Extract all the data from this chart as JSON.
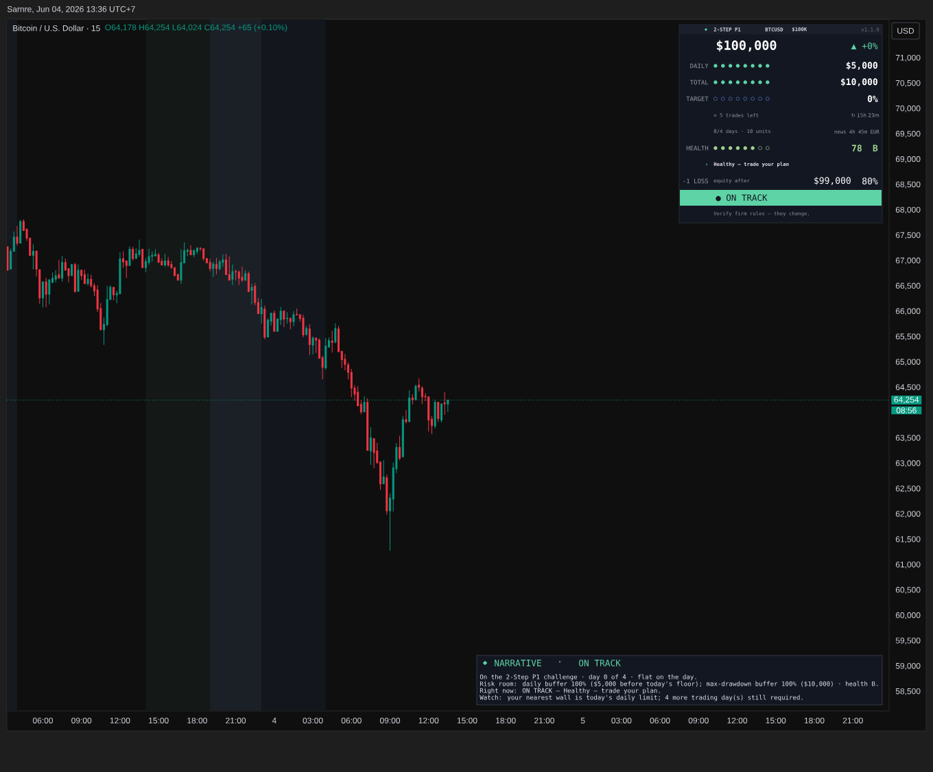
{
  "chart_data": {
    "type": "candlestick",
    "title": "Bitcoin / U.S. Dollar · 15",
    "subtitle": "O64,178 H64,254 L64,024 C64,254 +65 (+0.10%)",
    "x": [
      "2026-06-03T03:15",
      "2026-06-03T03:30",
      "2026-06-03T03:45",
      "2026-06-03T04:00",
      "2026-06-03T04:15",
      "2026-06-03T04:30",
      "2026-06-03T04:45",
      "2026-06-03T05:00",
      "2026-06-03T05:15",
      "2026-06-03T05:30",
      "2026-06-03T05:45",
      "2026-06-03T06:00",
      "2026-06-03T06:15",
      "2026-06-03T06:30",
      "2026-06-03T06:45",
      "2026-06-03T07:00",
      "2026-06-03T07:15",
      "2026-06-03T07:30",
      "2026-06-03T07:45",
      "2026-06-03T08:00",
      "2026-06-03T08:15",
      "2026-06-03T08:30",
      "2026-06-03T08:45",
      "2026-06-03T09:00",
      "2026-06-03T09:15",
      "2026-06-03T09:30",
      "2026-06-03T09:45",
      "2026-06-03T10:00",
      "2026-06-03T10:15",
      "2026-06-03T10:30",
      "2026-06-03T10:45",
      "2026-06-03T11:00",
      "2026-06-03T11:15",
      "2026-06-03T11:30",
      "2026-06-03T11:45",
      "2026-06-03T12:00",
      "2026-06-03T12:15",
      "2026-06-03T12:30",
      "2026-06-03T12:45",
      "2026-06-03T13:00",
      "2026-06-03T13:15",
      "2026-06-03T13:30",
      "2026-06-03T13:45",
      "2026-06-03T14:00",
      "2026-06-03T14:15",
      "2026-06-03T14:30",
      "2026-06-03T14:45",
      "2026-06-03T15:00",
      "2026-06-03T15:15",
      "2026-06-03T15:30",
      "2026-06-03T15:45",
      "2026-06-03T16:00",
      "2026-06-03T16:15",
      "2026-06-03T16:30",
      "2026-06-03T16:45",
      "2026-06-03T17:00",
      "2026-06-03T17:15",
      "2026-06-03T17:30",
      "2026-06-03T17:45",
      "2026-06-03T18:00",
      "2026-06-03T18:15",
      "2026-06-03T18:30",
      "2026-06-03T18:45",
      "2026-06-03T19:00",
      "2026-06-03T19:15",
      "2026-06-03T19:30",
      "2026-06-03T19:45",
      "2026-06-03T20:00",
      "2026-06-03T20:15",
      "2026-06-03T20:30",
      "2026-06-03T20:45",
      "2026-06-03T21:00",
      "2026-06-03T21:15",
      "2026-06-03T21:30",
      "2026-06-03T21:45",
      "2026-06-03T22:00",
      "2026-06-03T22:15",
      "2026-06-03T22:30",
      "2026-06-03T22:45",
      "2026-06-03T23:00",
      "2026-06-03T23:15",
      "2026-06-03T23:30",
      "2026-06-03T23:45",
      "2026-06-04T00:00",
      "2026-06-04T00:15",
      "2026-06-04T00:30",
      "2026-06-04T00:45",
      "2026-06-04T01:00",
      "2026-06-04T01:15",
      "2026-06-04T01:30",
      "2026-06-04T01:45",
      "2026-06-04T02:00",
      "2026-06-04T02:15",
      "2026-06-04T02:30",
      "2026-06-04T02:45",
      "2026-06-04T03:00",
      "2026-06-04T03:15",
      "2026-06-04T03:30",
      "2026-06-04T03:45",
      "2026-06-04T04:00",
      "2026-06-04T04:15",
      "2026-06-04T04:30",
      "2026-06-04T04:45",
      "2026-06-04T05:00",
      "2026-06-04T05:15",
      "2026-06-04T05:30",
      "2026-06-04T05:45",
      "2026-06-04T06:00",
      "2026-06-04T06:15",
      "2026-06-04T06:30",
      "2026-06-04T06:45",
      "2026-06-04T07:00",
      "2026-06-04T07:15",
      "2026-06-04T07:30",
      "2026-06-04T07:45",
      "2026-06-04T08:00",
      "2026-06-04T08:15",
      "2026-06-04T08:30",
      "2026-06-04T08:45",
      "2026-06-04T09:00",
      "2026-06-04T09:15",
      "2026-06-04T09:30",
      "2026-06-04T09:45",
      "2026-06-04T10:00",
      "2026-06-04T10:15",
      "2026-06-04T10:30",
      "2026-06-04T10:45",
      "2026-06-04T11:00",
      "2026-06-04T11:15",
      "2026-06-04T11:30",
      "2026-06-04T11:45",
      "2026-06-04T12:00",
      "2026-06-04T12:15",
      "2026-06-04T12:30",
      "2026-06-04T12:45",
      "2026-06-04T13:00",
      "2026-06-04T13:15",
      "2026-06-04T13:30"
    ],
    "ohlc": [
      [
        67280,
        67290,
        66810,
        66820
      ],
      [
        66840,
        67240,
        66840,
        67190
      ],
      [
        67190,
        67580,
        67190,
        67470
      ],
      [
        67470,
        67690,
        67310,
        67350
      ],
      [
        67350,
        67810,
        67350,
        67780
      ],
      [
        67780,
        67820,
        67600,
        67600
      ],
      [
        67630,
        67630,
        67400,
        67450
      ],
      [
        67450,
        67450,
        67110,
        67110
      ],
      [
        67110,
        67330,
        66840,
        67190
      ],
      [
        67190,
        67210,
        66700,
        66840
      ],
      [
        66830,
        66830,
        66160,
        66270
      ],
      [
        66270,
        66590,
        66090,
        66590
      ],
      [
        66590,
        66670,
        66090,
        66340
      ],
      [
        66340,
        66630,
        66150,
        66630
      ],
      [
        66580,
        66770,
        66560,
        66660
      ],
      [
        66640,
        66820,
        66580,
        66710
      ],
      [
        66730,
        67020,
        66660,
        66660
      ],
      [
        66660,
        67100,
        66600,
        66970
      ],
      [
        66970,
        67050,
        66820,
        66820
      ],
      [
        66850,
        66850,
        66580,
        66710
      ],
      [
        66710,
        66940,
        66710,
        66930
      ],
      [
        66930,
        66960,
        66380,
        66400
      ],
      [
        66400,
        66930,
        66400,
        66820
      ],
      [
        66820,
        66830,
        66630,
        66710
      ],
      [
        66730,
        66830,
        66550,
        66550
      ],
      [
        66550,
        66750,
        66520,
        66640
      ],
      [
        66640,
        66730,
        66480,
        66510
      ],
      [
        66510,
        66560,
        66310,
        66410
      ],
      [
        66430,
        66520,
        66000,
        66050
      ],
      [
        66060,
        66170,
        65640,
        65640
      ],
      [
        65640,
        65890,
        65350,
        65750
      ],
      [
        65740,
        66510,
        65720,
        66240
      ],
      [
        66240,
        66520,
        66230,
        66480
      ],
      [
        66480,
        66480,
        66230,
        66330
      ],
      [
        66330,
        66410,
        66170,
        66360
      ],
      [
        66350,
        67170,
        66350,
        67040
      ],
      [
        67040,
        67190,
        66870,
        66980
      ],
      [
        67000,
        67000,
        66670,
        66910
      ],
      [
        66910,
        67290,
        66910,
        67230
      ],
      [
        67230,
        67280,
        67010,
        67050
      ],
      [
        67050,
        67250,
        67050,
        67140
      ],
      [
        67130,
        67420,
        67090,
        67210
      ],
      [
        67230,
        67230,
        66870,
        66870
      ],
      [
        66870,
        67060,
        66780,
        66990
      ],
      [
        66970,
        67240,
        66930,
        67090
      ],
      [
        67090,
        67190,
        66990,
        67110
      ],
      [
        67100,
        67230,
        67100,
        67130
      ],
      [
        67120,
        67160,
        66970,
        66970
      ],
      [
        66990,
        67050,
        66920,
        66920
      ],
      [
        66920,
        67140,
        66890,
        67000
      ],
      [
        67000,
        67080,
        66890,
        66920
      ],
      [
        66930,
        67000,
        66850,
        66870
      ],
      [
        66870,
        66870,
        66700,
        66710
      ],
      [
        66730,
        66750,
        66620,
        66620
      ],
      [
        66620,
        67230,
        66550,
        66970
      ],
      [
        66960,
        67370,
        66960,
        67200
      ],
      [
        67190,
        67240,
        67100,
        67210
      ],
      [
        67210,
        67310,
        67120,
        67120
      ],
      [
        67120,
        67230,
        67080,
        67200
      ],
      [
        67190,
        67270,
        67140,
        67250
      ],
      [
        67250,
        67270,
        67200,
        67240
      ],
      [
        67240,
        67240,
        67010,
        67050
      ],
      [
        67050,
        67060,
        66960,
        66960
      ],
      [
        66970,
        67040,
        66800,
        66850
      ],
      [
        66850,
        66980,
        66690,
        66940
      ],
      [
        66930,
        67060,
        66740,
        66850
      ],
      [
        66850,
        67020,
        66820,
        66980
      ],
      [
        66970,
        67130,
        66890,
        67020
      ],
      [
        67020,
        67140,
        66730,
        66730
      ],
      [
        66730,
        67090,
        66620,
        66620
      ],
      [
        66640,
        66930,
        66530,
        66790
      ],
      [
        66790,
        66830,
        66620,
        66780
      ],
      [
        66780,
        66810,
        66530,
        66660
      ],
      [
        66680,
        66890,
        66590,
        66620
      ],
      [
        66620,
        66820,
        66620,
        66750
      ],
      [
        66750,
        66790,
        66390,
        66400
      ],
      [
        66420,
        66550,
        66150,
        66480
      ],
      [
        66500,
        66560,
        66130,
        66180
      ],
      [
        66180,
        66270,
        65960,
        65960
      ],
      [
        65960,
        66250,
        65770,
        66080
      ],
      [
        66050,
        66120,
        65460,
        65500
      ],
      [
        65500,
        65870,
        65500,
        65830
      ],
      [
        65810,
        65970,
        65730,
        65970
      ],
      [
        65970,
        66020,
        65610,
        65610
      ],
      [
        65610,
        65870,
        65610,
        65850
      ],
      [
        65840,
        66090,
        65740,
        66010
      ],
      [
        66010,
        66020,
        65700,
        65850
      ],
      [
        65860,
        65990,
        65770,
        65870
      ],
      [
        65870,
        65870,
        65660,
        65800
      ],
      [
        65800,
        66010,
        65720,
        65940
      ],
      [
        65950,
        66060,
        65930,
        65940
      ],
      [
        65940,
        65950,
        65810,
        65860
      ],
      [
        65870,
        65940,
        65500,
        65540
      ],
      [
        65550,
        65720,
        65530,
        65670
      ],
      [
        65660,
        65750,
        65150,
        65350
      ],
      [
        65340,
        65510,
        65160,
        65480
      ],
      [
        65480,
        65490,
        65190,
        65440
      ],
      [
        65440,
        65470,
        65080,
        65080
      ],
      [
        65090,
        65130,
        64670,
        64900
      ],
      [
        64890,
        65480,
        64860,
        65320
      ],
      [
        65300,
        65490,
        65300,
        65430
      ],
      [
        65420,
        65620,
        65200,
        65390
      ],
      [
        65400,
        65770,
        65380,
        65670
      ],
      [
        65660,
        65720,
        65210,
        65210
      ],
      [
        65220,
        65220,
        64890,
        65050
      ],
      [
        65060,
        65160,
        64850,
        64960
      ],
      [
        64950,
        65000,
        64670,
        64800
      ],
      [
        64800,
        64870,
        64320,
        64490
      ],
      [
        64490,
        64550,
        64250,
        64370
      ],
      [
        64410,
        64530,
        64140,
        64140
      ],
      [
        64170,
        64250,
        63980,
        64020
      ],
      [
        64020,
        64330,
        64020,
        64210
      ],
      [
        64210,
        64290,
        63260,
        63260
      ],
      [
        63250,
        63720,
        62980,
        63510
      ],
      [
        63490,
        63510,
        62920,
        63220
      ],
      [
        63250,
        63410,
        63000,
        63020
      ],
      [
        63030,
        63050,
        62490,
        62600
      ],
      [
        62600,
        63070,
        62600,
        62740
      ],
      [
        62720,
        62780,
        62000,
        62070
      ],
      [
        62070,
        62410,
        61290,
        62320
      ],
      [
        62300,
        63020,
        62060,
        62920
      ],
      [
        62900,
        63410,
        62820,
        63320
      ],
      [
        63320,
        63550,
        63070,
        63110
      ],
      [
        63140,
        63940,
        63130,
        63870
      ],
      [
        63870,
        64060,
        63800,
        63830
      ],
      [
        63830,
        64450,
        63830,
        64300
      ],
      [
        64300,
        64370,
        64170,
        64260
      ],
      [
        64260,
        64560,
        64250,
        64530
      ],
      [
        64550,
        64680,
        64430,
        64510
      ],
      [
        64490,
        64530,
        64180,
        64320
      ],
      [
        64330,
        64390,
        64240,
        64320
      ],
      [
        64320,
        64320,
        63640,
        63860
      ],
      [
        63880,
        63940,
        63590,
        63750
      ],
      [
        63740,
        64260,
        63700,
        64210
      ],
      [
        64210,
        64210,
        63830,
        63890
      ],
      [
        63860,
        64180,
        63820,
        64180
      ],
      [
        64200,
        64410,
        63970,
        64180
      ],
      [
        64178,
        64254,
        64024,
        64254
      ]
    ],
    "colors": [
      "#f23645",
      "#089981",
      "#089981",
      "#f23645",
      "#089981",
      "#f23645",
      "#f23645",
      "#f23645",
      "#089981",
      "#f23645",
      "#f23645",
      "#089981",
      "#f23645",
      "#089981",
      "#089981",
      "#089981",
      "#f23645",
      "#089981",
      "#f23645",
      "#f23645",
      "#089981",
      "#f23645",
      "#089981",
      "#f23645",
      "#f23645",
      "#089981",
      "#f23645",
      "#f23645",
      "#f23645",
      "#f23645",
      "#089981",
      "#089981",
      "#089981",
      "#f23645",
      "#089981",
      "#089981",
      "#f23645",
      "#f23645",
      "#089981",
      "#f23645",
      "#089981",
      "#089981",
      "#f23645",
      "#089981",
      "#089981",
      "#089981",
      "#089981",
      "#f23645",
      "#f23645",
      "#089981",
      "#f23645",
      "#f23645",
      "#f23645",
      "#f23645",
      "#089981",
      "#089981",
      "#089981",
      "#f23645",
      "#089981",
      "#089981",
      "#f23645",
      "#f23645",
      "#f23645",
      "#f23645",
      "#089981",
      "#f23645",
      "#089981",
      "#089981",
      "#f23645",
      "#f23645",
      "#089981",
      "#f23645",
      "#f23645",
      "#f23645",
      "#089981",
      "#f23645",
      "#089981",
      "#f23645",
      "#f23645",
      "#089981",
      "#f23645",
      "#089981",
      "#089981",
      "#f23645",
      "#089981",
      "#089981",
      "#f23645",
      "#089981",
      "#f23645",
      "#089981",
      "#f23645",
      "#f23645",
      "#f23645",
      "#089981",
      "#f23645",
      "#089981",
      "#f23645",
      "#f23645",
      "#f23645",
      "#089981",
      "#089981",
      "#f23645",
      "#089981",
      "#f23645",
      "#f23645",
      "#f23645",
      "#f23645",
      "#f23645",
      "#f23645",
      "#f23645",
      "#f23645",
      "#089981",
      "#f23645",
      "#089981",
      "#f23645",
      "#f23645",
      "#f23645",
      "#089981",
      "#f23645",
      "#089981",
      "#089981",
      "#089981",
      "#f23645",
      "#089981",
      "#f23645",
      "#089981",
      "#f23645",
      "#089981",
      "#f23645",
      "#f23645",
      "#f23645",
      "#f23645",
      "#f23645",
      "#089981",
      "#f23645",
      "#089981",
      "#f23645",
      "#089981"
    ],
    "xlim": [
      "2026-06-03T03:12",
      "2026-06-05T23:49"
    ],
    "xticks": [
      {
        "value": "2026-06-03T06:00",
        "label": "06:00"
      },
      {
        "value": "2026-06-03T09:00",
        "label": "09:00"
      },
      {
        "value": "2026-06-03T12:00",
        "label": "12:00"
      },
      {
        "value": "2026-06-03T15:00",
        "label": "15:00"
      },
      {
        "value": "2026-06-03T18:00",
        "label": "18:00"
      },
      {
        "value": "2026-06-03T21:00",
        "label": "21:00"
      },
      {
        "value": "2026-06-04T00:00",
        "label": "4"
      },
      {
        "value": "2026-06-04T03:00",
        "label": "03:00"
      },
      {
        "value": "2026-06-04T06:00",
        "label": "06:00"
      },
      {
        "value": "2026-06-04T09:00",
        "label": "09:00"
      },
      {
        "value": "2026-06-04T12:00",
        "label": "12:00"
      },
      {
        "value": "2026-06-04T15:00",
        "label": "15:00"
      },
      {
        "value": "2026-06-04T18:00",
        "label": "18:00"
      },
      {
        "value": "2026-06-04T21:00",
        "label": "21:00"
      },
      {
        "value": "2026-06-05T00:00",
        "label": "5"
      },
      {
        "value": "2026-06-05T03:00",
        "label": "03:00"
      },
      {
        "value": "2026-06-05T06:00",
        "label": "06:00"
      },
      {
        "value": "2026-06-05T09:00",
        "label": "09:00"
      },
      {
        "value": "2026-06-05T12:00",
        "label": "12:00"
      },
      {
        "value": "2026-06-05T15:00",
        "label": "15:00"
      },
      {
        "value": "2026-06-05T18:00",
        "label": "18:00"
      },
      {
        "value": "2026-06-05T21:00",
        "label": "21:00"
      }
    ],
    "ylim": [
      58120,
      71770
    ],
    "yticks": [
      {
        "value": 58500,
        "label": "58,500"
      },
      {
        "value": 59000,
        "label": "59,000"
      },
      {
        "value": 59500,
        "label": "59,500"
      },
      {
        "value": 60000,
        "label": "60,000"
      },
      {
        "value": 60500,
        "label": "60,500"
      },
      {
        "value": 61000,
        "label": "61,000"
      },
      {
        "value": 61500,
        "label": "61,500"
      },
      {
        "value": 62000,
        "label": "62,000"
      },
      {
        "value": 62500,
        "label": "62,500"
      },
      {
        "value": 63000,
        "label": "63,000"
      },
      {
        "value": 63500,
        "label": "63,500"
      },
      {
        "value": 64500,
        "label": "64,500"
      },
      {
        "value": 65000,
        "label": "65,000"
      },
      {
        "value": 65500,
        "label": "65,500"
      },
      {
        "value": 66000,
        "label": "66,000"
      },
      {
        "value": 66500,
        "label": "66,500"
      },
      {
        "value": 67000,
        "label": "67,000"
      },
      {
        "value": 67500,
        "label": "67,500"
      },
      {
        "value": 68000,
        "label": "68,000"
      },
      {
        "value": 68500,
        "label": "68,500"
      },
      {
        "value": 69000,
        "label": "69,000"
      },
      {
        "value": 69500,
        "label": "69,500"
      },
      {
        "value": 70000,
        "label": "70,000"
      },
      {
        "value": 70500,
        "label": "70,500"
      },
      {
        "value": 71000,
        "label": "71,000"
      }
    ],
    "ref_lines": [
      {
        "axis": "y",
        "value": 64254,
        "label": "64,254",
        "color": "#089981",
        "line_style": "dotted"
      }
    ],
    "bands": [
      {
        "axis": "x",
        "from": "2026-06-03T03:12",
        "to": "2026-06-03T04:00",
        "color": "#161a1f"
      },
      {
        "axis": "x",
        "from": "2026-06-03T14:00",
        "to": "2026-06-03T19:00",
        "color": "#141816"
      },
      {
        "axis": "x",
        "from": "2026-06-03T19:00",
        "to": "2026-06-03T23:00",
        "color": "#1b2026"
      },
      {
        "axis": "x",
        "from": "2026-06-03T23:00",
        "to": "2026-06-04T04:00",
        "color": "#13171d"
      }
    ],
    "annotations": [
      "Sarnre, Jun 04, 2026 13:36 UTC+7",
      "USD",
      "08:56",
      "◆",
      "2-STEP P1",
      "BTCUSD",
      "$100K",
      "v1.1.0",
      "$100,000",
      "▲ +0%",
      "DAILY",
      "● ● ● ● ● ● ● ●",
      "$5,000",
      "TOTAL",
      "● ● ● ● ● ● ● ●",
      "$10,000",
      "TARGET",
      "○ ○ ○ ○ ○ ○ ○ ○",
      "0%",
      "≈ 5 trades left",
      "↻ 15h 23m",
      "0/4 days · 10 units",
      "news 4h 45m EUR",
      "HEALTH",
      "● ● ● ● ● ● ○ ○",
      "78",
      "B",
      "›",
      "Healthy — trade your plan",
      "-1 LOSS",
      "equity after",
      "$99,000",
      "80%",
      "● ON TRACK",
      "Verify firm rules — they change.",
      "◆",
      "NARRATIVE",
      "·",
      "ON TRACK",
      "On the 2-Step P1 challenge · day 0 of 4 · flat on the day.",
      "Risk room: daily buffer 100% ($5,000 before today's floor); max-drawdown buffer 100% ($10,000) · health B.",
      "Right now: ON TRACK — Healthy — trade your plan.",
      "Watch: your nearest wall is today's daily limit; 4 more trading day(s) still required."
    ]
  }
}
